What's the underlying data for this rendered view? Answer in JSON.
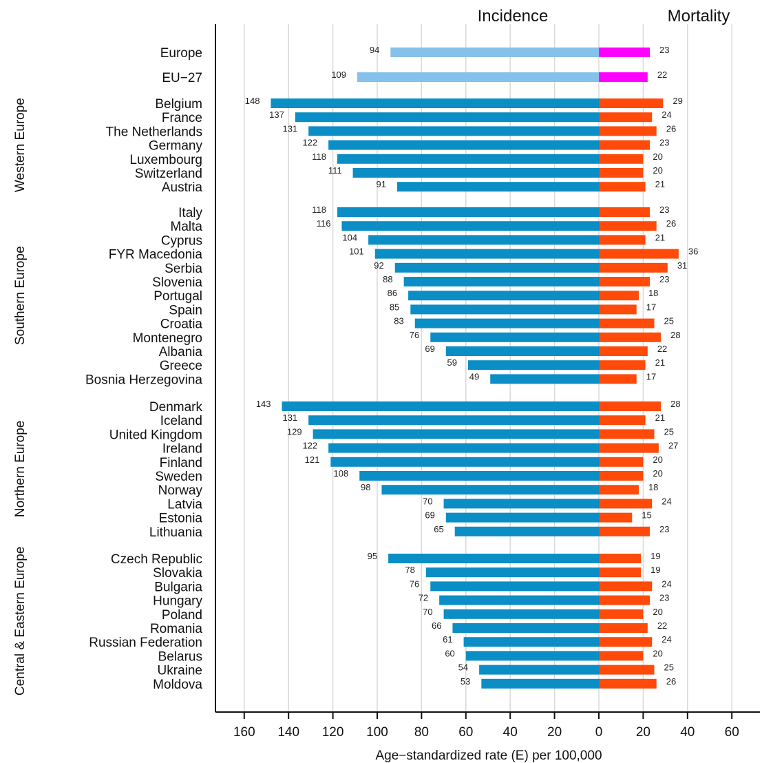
{
  "chart_data": {
    "type": "bar",
    "orientation": "horizontal",
    "panels": [
      "Incidence",
      "Mortality"
    ],
    "xlabel": "Age−standardized rate (E) per 100,000",
    "incidence_ticks": [
      160,
      140,
      120,
      100,
      80,
      60,
      40,
      20,
      0
    ],
    "mortality_ticks": [
      20,
      40,
      60
    ],
    "incidence_range": [
      0,
      170
    ],
    "mortality_range": [
      0,
      70
    ],
    "grid": true,
    "colors": {
      "summary_incidence": "#85c1ea",
      "summary_mortality": "#ff00ff",
      "country_incidence": "#0a8ec5",
      "country_mortality": "#ff4a0a"
    },
    "summary": [
      {
        "name": "Europe",
        "incidence": 94,
        "mortality": 23
      },
      {
        "name": "EU−27",
        "incidence": 109,
        "mortality": 22
      }
    ],
    "groups": [
      {
        "name": "Western Europe",
        "countries": [
          {
            "name": "Belgium",
            "incidence": 148,
            "mortality": 29
          },
          {
            "name": "France",
            "incidence": 137,
            "mortality": 24
          },
          {
            "name": "The Netherlands",
            "incidence": 131,
            "mortality": 26
          },
          {
            "name": "Germany",
            "incidence": 122,
            "mortality": 23
          },
          {
            "name": "Luxembourg",
            "incidence": 118,
            "mortality": 20
          },
          {
            "name": "Switzerland",
            "incidence": 111,
            "mortality": 20
          },
          {
            "name": "Austria",
            "incidence": 91,
            "mortality": 21
          }
        ]
      },
      {
        "name": "Southern Europe",
        "countries": [
          {
            "name": "Italy",
            "incidence": 118,
            "mortality": 23
          },
          {
            "name": "Malta",
            "incidence": 116,
            "mortality": 26
          },
          {
            "name": "Cyprus",
            "incidence": 104,
            "mortality": 21
          },
          {
            "name": "FYR Macedonia",
            "incidence": 101,
            "mortality": 36
          },
          {
            "name": "Serbia",
            "incidence": 92,
            "mortality": 31
          },
          {
            "name": "Slovenia",
            "incidence": 88,
            "mortality": 23
          },
          {
            "name": "Portugal",
            "incidence": 86,
            "mortality": 18
          },
          {
            "name": "Spain",
            "incidence": 85,
            "mortality": 17
          },
          {
            "name": "Croatia",
            "incidence": 83,
            "mortality": 25
          },
          {
            "name": "Montenegro",
            "incidence": 76,
            "mortality": 28
          },
          {
            "name": "Albania",
            "incidence": 69,
            "mortality": 22
          },
          {
            "name": "Greece",
            "incidence": 59,
            "mortality": 21
          },
          {
            "name": "Bosnia Herzegovina",
            "incidence": 49,
            "mortality": 17
          }
        ]
      },
      {
        "name": "Northern Europe",
        "countries": [
          {
            "name": "Denmark",
            "incidence": 143,
            "mortality": 28
          },
          {
            "name": "Iceland",
            "incidence": 131,
            "mortality": 21
          },
          {
            "name": "United Kingdom",
            "incidence": 129,
            "mortality": 25
          },
          {
            "name": "Ireland",
            "incidence": 122,
            "mortality": 27
          },
          {
            "name": "Finland",
            "incidence": 121,
            "mortality": 20
          },
          {
            "name": "Sweden",
            "incidence": 108,
            "mortality": 20
          },
          {
            "name": "Norway",
            "incidence": 98,
            "mortality": 18
          },
          {
            "name": "Latvia",
            "incidence": 70,
            "mortality": 24
          },
          {
            "name": "Estonia",
            "incidence": 69,
            "mortality": 15
          },
          {
            "name": "Lithuania",
            "incidence": 65,
            "mortality": 23
          }
        ]
      },
      {
        "name": "Central & Eastern Europe",
        "countries": [
          {
            "name": "Czech Republic",
            "incidence": 95,
            "mortality": 19
          },
          {
            "name": "Slovakia",
            "incidence": 78,
            "mortality": 19
          },
          {
            "name": "Bulgaria",
            "incidence": 76,
            "mortality": 24
          },
          {
            "name": "Hungary",
            "incidence": 72,
            "mortality": 23
          },
          {
            "name": "Poland",
            "incidence": 70,
            "mortality": 20
          },
          {
            "name": "Romania",
            "incidence": 66,
            "mortality": 22
          },
          {
            "name": "Russian Federation",
            "incidence": 61,
            "mortality": 24
          },
          {
            "name": "Belarus",
            "incidence": 60,
            "mortality": 20
          },
          {
            "name": "Ukraine",
            "incidence": 54,
            "mortality": 25
          },
          {
            "name": "Moldova",
            "incidence": 53,
            "mortality": 26
          }
        ]
      }
    ]
  }
}
